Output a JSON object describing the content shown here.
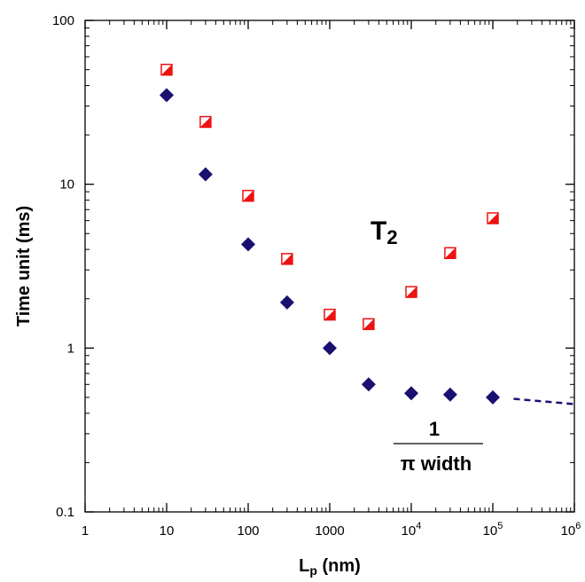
{
  "chart_data": {
    "type": "scatter",
    "xscale": "log",
    "yscale": "log",
    "xlim": [
      1,
      1000000
    ],
    "ylim": [
      0.1,
      100
    ],
    "x_ticks": [
      {
        "value": 1,
        "label": "1"
      },
      {
        "value": 10,
        "label": "10"
      },
      {
        "value": 100,
        "label": "100"
      },
      {
        "value": 1000,
        "label": "1000"
      },
      {
        "value": 10000,
        "base": "10",
        "exp": "4"
      },
      {
        "value": 100000,
        "base": "10",
        "exp": "5"
      },
      {
        "value": 1000000,
        "base": "10",
        "exp": "6"
      }
    ],
    "y_ticks": [
      {
        "value": 0.1,
        "label": "0.1"
      },
      {
        "value": 1,
        "label": "1"
      },
      {
        "value": 10,
        "label": "10"
      },
      {
        "value": 100,
        "label": "100"
      }
    ],
    "xlabel": {
      "main": "L",
      "sub": "p",
      "rest": " (nm)"
    },
    "ylabel": "Time unit (ms)",
    "series": [
      {
        "name": "T2",
        "marker": "half-filled-square",
        "color": "#ee1111",
        "x": [
          10,
          30,
          100,
          300,
          1000,
          3000,
          10000,
          30000,
          100000
        ],
        "y": [
          50,
          24,
          8.5,
          3.5,
          1.6,
          1.4,
          2.2,
          3.8,
          6.2
        ]
      },
      {
        "name": "1/(π width)",
        "marker": "diamond",
        "color": "#1a1070",
        "x": [
          10,
          30,
          100,
          300,
          1000,
          3000,
          10000,
          30000,
          100000
        ],
        "y": [
          35,
          11.5,
          4.3,
          1.9,
          1.0,
          0.6,
          0.53,
          0.52,
          0.5
        ],
        "extrapolation": {
          "x": [
            180000,
            1000000
          ],
          "y": [
            0.49,
            0.455
          ],
          "style": "dashed"
        }
      }
    ],
    "annotations": {
      "t2": {
        "main": "T",
        "sub": "2"
      },
      "fraction": {
        "numerator": "1",
        "denominator": "π width"
      }
    }
  }
}
